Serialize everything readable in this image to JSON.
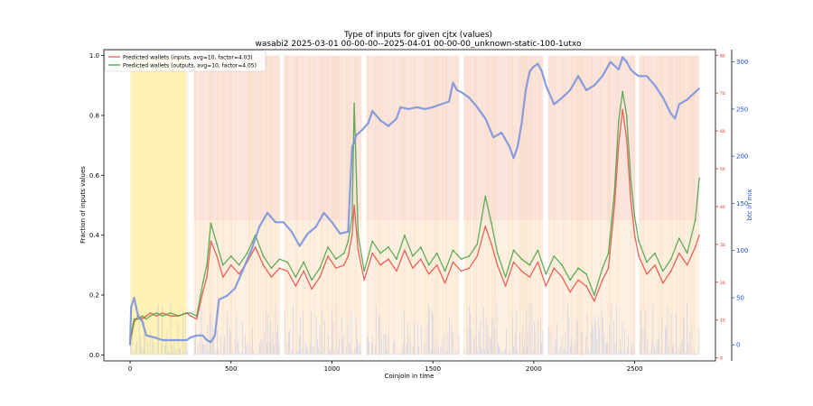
{
  "chart_data": {
    "type": "line",
    "title": "Type of inputs for given cjtx (values)",
    "subtitle": "wasabi2 2025-03-01 00-00-00--2025-04-01 00-00-00_unknown-static-100-1utxo",
    "xlabel": "Coinjoin in time",
    "ylabel": "Fraction of inputs values",
    "y2label": "btc in mix",
    "xlim": [
      -130,
      2900
    ],
    "ylim": [
      -0.02,
      1.02
    ],
    "y3lim": [
      -0.8,
      81.5
    ],
    "y2lim": [
      -17,
      313
    ],
    "xticks": [
      0,
      500,
      1000,
      1500,
      2000,
      2500
    ],
    "xtick_labels": [
      "0",
      "500",
      "1000",
      "1500",
      "2000",
      "2500"
    ],
    "yticks": [
      0.0,
      0.2,
      0.4,
      0.6,
      0.8,
      1.0
    ],
    "ytick_labels": [
      "0.0",
      "0.2",
      "0.4",
      "0.6",
      "0.8",
      "1.0"
    ],
    "y3ticks": [
      0,
      10,
      20,
      30,
      40,
      50,
      60,
      70,
      80
    ],
    "y3tick_labels": [
      "0",
      "10",
      "20",
      "30",
      "40",
      "50",
      "60",
      "70",
      "80"
    ],
    "y2ticks": [
      0,
      50,
      100,
      150,
      200,
      250,
      300
    ],
    "y2tick_labels": [
      "0",
      "50",
      "100",
      "150",
      "200",
      "250",
      "300"
    ],
    "legend_position": "top-left",
    "grid": false,
    "colors": {
      "inputs": "#e8524a",
      "outputs": "#3a9a3a",
      "btc": "#7b93dd",
      "highlight": "#fff2b0",
      "red_axis": "#d62728",
      "blue_axis": "#1f4fd6"
    },
    "highlight_region": [
      3,
      278
    ],
    "gap_regions": [
      [
        290,
        315
      ],
      [
        743,
        763
      ],
      [
        1148,
        1170
      ],
      [
        1630,
        1652
      ],
      [
        2047,
        2070
      ],
      [
        2503,
        2522
      ]
    ],
    "series": [
      {
        "name": "Predicted wallets (inputs, avg=10, factor=4.03)",
        "axis": "left",
        "x": [
          0,
          20,
          40,
          60,
          80,
          100,
          130,
          160,
          200,
          240,
          280,
          300,
          330,
          360,
          380,
          400,
          430,
          460,
          500,
          540,
          580,
          620,
          660,
          700,
          740,
          780,
          820,
          860,
          900,
          940,
          980,
          1020,
          1060,
          1080,
          1100,
          1110,
          1130,
          1160,
          1200,
          1240,
          1280,
          1320,
          1360,
          1400,
          1440,
          1480,
          1520,
          1560,
          1600,
          1640,
          1680,
          1720,
          1760,
          1790,
          1820,
          1860,
          1900,
          1940,
          1980,
          2020,
          2060,
          2100,
          2140,
          2180,
          2220,
          2260,
          2300,
          2340,
          2370,
          2400,
          2420,
          2440,
          2460,
          2480,
          2500,
          2520,
          2560,
          2600,
          2640,
          2680,
          2720,
          2760,
          2800,
          2820
        ],
        "values": [
          0.04,
          0.11,
          0.13,
          0.12,
          0.13,
          0.14,
          0.13,
          0.14,
          0.13,
          0.13,
          0.14,
          0.13,
          0.12,
          0.21,
          0.26,
          0.38,
          0.33,
          0.26,
          0.3,
          0.27,
          0.31,
          0.36,
          0.3,
          0.26,
          0.29,
          0.28,
          0.23,
          0.28,
          0.22,
          0.26,
          0.33,
          0.29,
          0.3,
          0.33,
          0.4,
          0.5,
          0.35,
          0.25,
          0.34,
          0.3,
          0.32,
          0.28,
          0.35,
          0.29,
          0.32,
          0.27,
          0.3,
          0.24,
          0.31,
          0.28,
          0.29,
          0.33,
          0.43,
          0.37,
          0.3,
          0.23,
          0.31,
          0.28,
          0.26,
          0.31,
          0.23,
          0.29,
          0.26,
          0.21,
          0.25,
          0.23,
          0.18,
          0.25,
          0.29,
          0.5,
          0.7,
          0.82,
          0.72,
          0.52,
          0.4,
          0.33,
          0.27,
          0.3,
          0.24,
          0.28,
          0.34,
          0.3,
          0.36,
          0.4
        ]
      },
      {
        "name": "Predicted wallets (outputs, avg=10, factor=4.05)",
        "axis": "left",
        "x": [
          0,
          20,
          40,
          60,
          80,
          100,
          130,
          160,
          200,
          240,
          280,
          300,
          330,
          360,
          380,
          400,
          430,
          460,
          500,
          540,
          580,
          620,
          660,
          700,
          740,
          780,
          820,
          860,
          900,
          940,
          980,
          1020,
          1060,
          1080,
          1100,
          1110,
          1130,
          1160,
          1200,
          1240,
          1280,
          1320,
          1360,
          1400,
          1440,
          1480,
          1520,
          1560,
          1600,
          1640,
          1680,
          1720,
          1760,
          1790,
          1820,
          1860,
          1900,
          1940,
          1980,
          2020,
          2060,
          2100,
          2140,
          2180,
          2220,
          2260,
          2300,
          2340,
          2370,
          2400,
          2420,
          2440,
          2460,
          2480,
          2500,
          2520,
          2560,
          2600,
          2640,
          2680,
          2720,
          2760,
          2800,
          2820
        ],
        "values": [
          0.05,
          0.12,
          0.12,
          0.13,
          0.12,
          0.13,
          0.14,
          0.13,
          0.14,
          0.13,
          0.14,
          0.14,
          0.13,
          0.24,
          0.3,
          0.44,
          0.37,
          0.3,
          0.33,
          0.3,
          0.34,
          0.4,
          0.33,
          0.29,
          0.32,
          0.31,
          0.26,
          0.31,
          0.25,
          0.29,
          0.36,
          0.32,
          0.34,
          0.38,
          0.46,
          0.84,
          0.4,
          0.28,
          0.38,
          0.34,
          0.36,
          0.32,
          0.4,
          0.33,
          0.36,
          0.3,
          0.34,
          0.28,
          0.35,
          0.32,
          0.33,
          0.37,
          0.53,
          0.44,
          0.34,
          0.26,
          0.35,
          0.32,
          0.3,
          0.35,
          0.27,
          0.33,
          0.3,
          0.25,
          0.29,
          0.27,
          0.2,
          0.29,
          0.34,
          0.55,
          0.78,
          0.88,
          0.8,
          0.59,
          0.46,
          0.38,
          0.31,
          0.34,
          0.28,
          0.32,
          0.39,
          0.34,
          0.45,
          0.59
        ]
      },
      {
        "name": "btc in mix",
        "axis": "right",
        "x": [
          0,
          5,
          20,
          40,
          60,
          80,
          120,
          160,
          200,
          240,
          280,
          300,
          330,
          360,
          380,
          400,
          420,
          440,
          480,
          520,
          560,
          600,
          640,
          680,
          720,
          760,
          800,
          840,
          880,
          920,
          960,
          1000,
          1040,
          1080,
          1100,
          1110,
          1120,
          1150,
          1180,
          1200,
          1240,
          1280,
          1320,
          1340,
          1380,
          1420,
          1460,
          1500,
          1540,
          1580,
          1600,
          1620,
          1640,
          1680,
          1720,
          1760,
          1800,
          1840,
          1880,
          1900,
          1920,
          1940,
          1960,
          1980,
          2000,
          2020,
          2040,
          2060,
          2100,
          2140,
          2180,
          2220,
          2260,
          2300,
          2340,
          2380,
          2420,
          2440,
          2460,
          2480,
          2500,
          2520,
          2560,
          2600,
          2640,
          2680,
          2700,
          2720,
          2760,
          2800,
          2820
        ],
        "values": [
          0,
          40,
          50,
          30,
          25,
          10,
          8,
          5,
          5,
          5,
          5,
          8,
          10,
          10,
          5,
          3,
          10,
          48,
          52,
          60,
          80,
          100,
          125,
          140,
          130,
          130,
          120,
          105,
          118,
          125,
          140,
          130,
          118,
          120,
          210,
          215,
          222,
          228,
          235,
          248,
          238,
          232,
          240,
          252,
          250,
          252,
          250,
          252,
          255,
          258,
          278,
          270,
          268,
          262,
          252,
          240,
          220,
          225,
          210,
          198,
          210,
          235,
          270,
          290,
          295,
          298,
          290,
          275,
          255,
          262,
          270,
          285,
          270,
          275,
          285,
          300,
          292,
          305,
          300,
          292,
          288,
          285,
          285,
          275,
          262,
          245,
          240,
          255,
          260,
          268,
          272
        ]
      }
    ]
  }
}
